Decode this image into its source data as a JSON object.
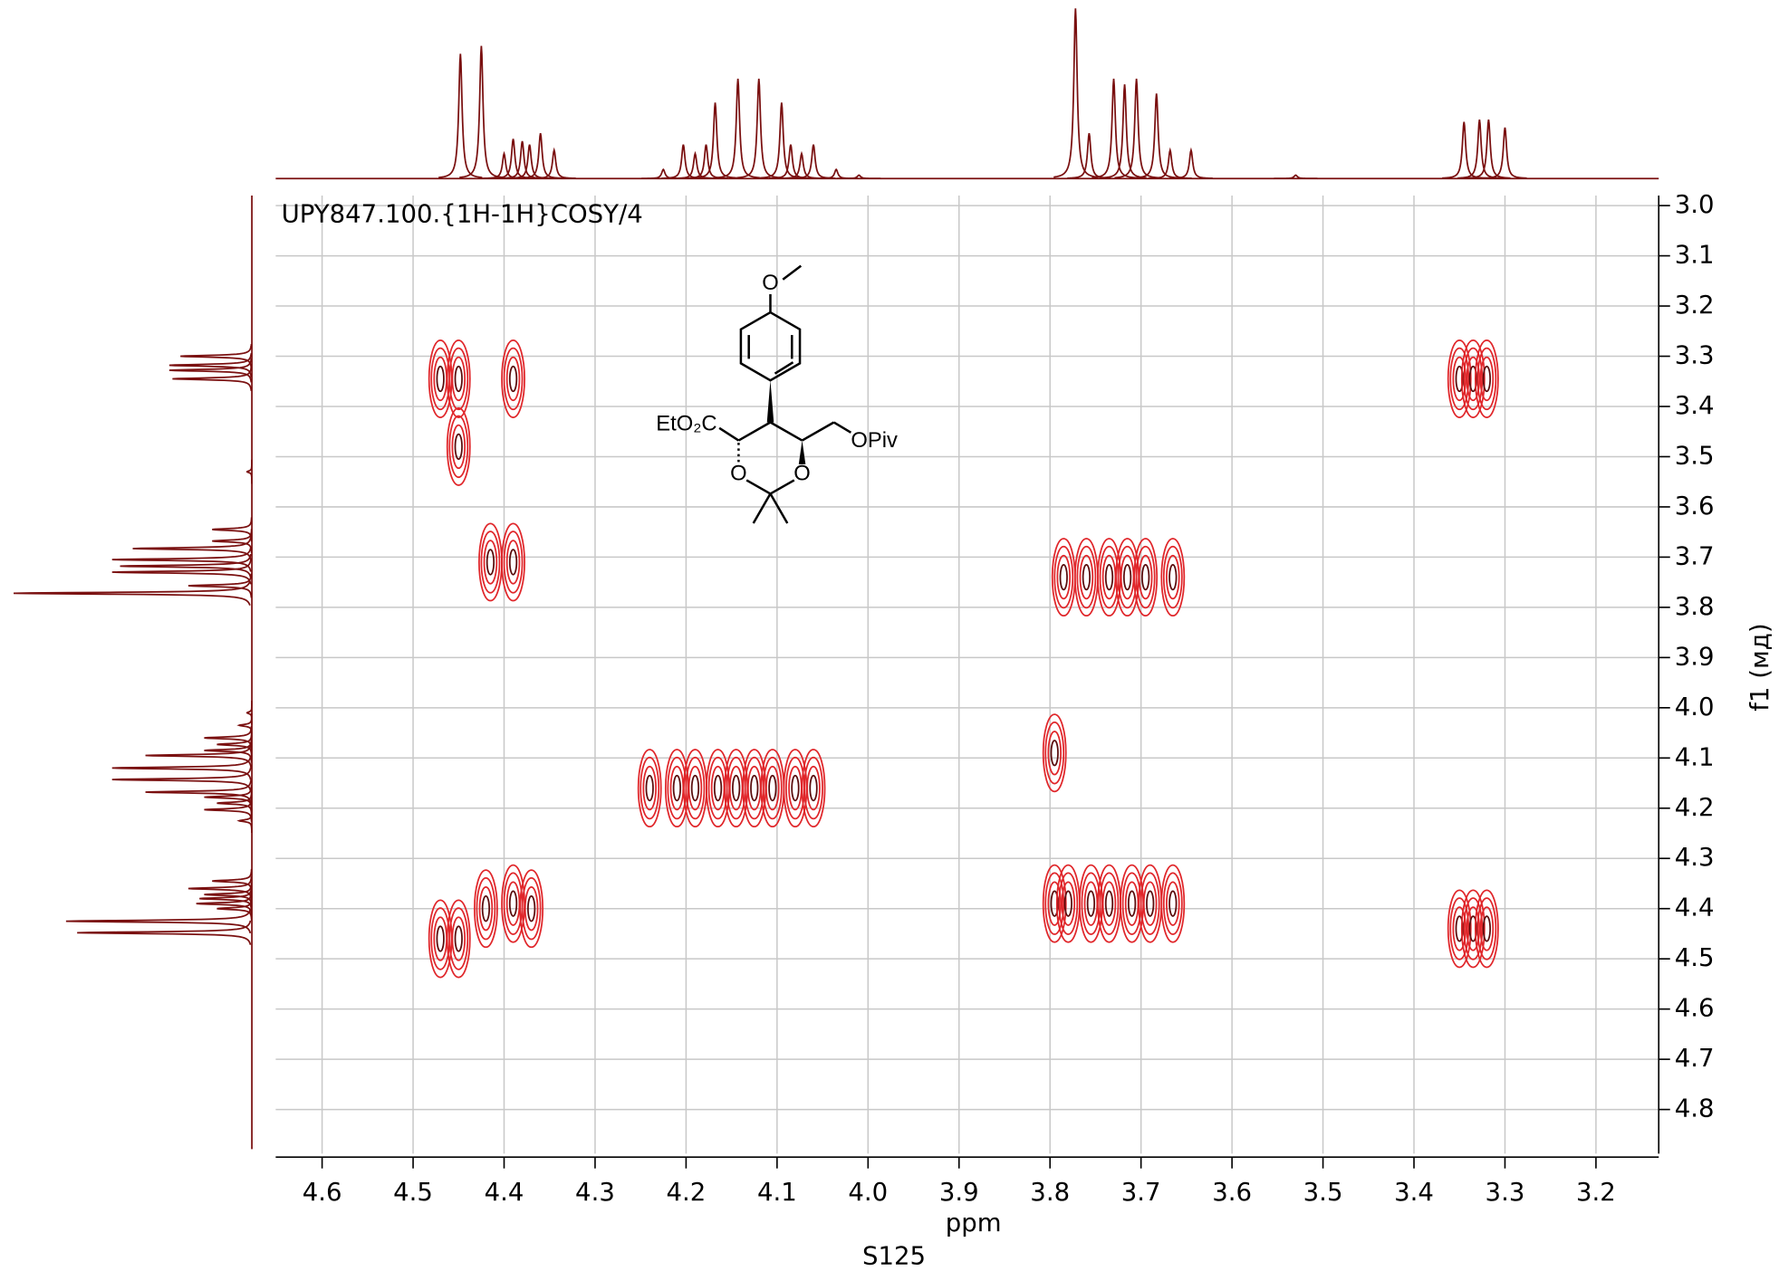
{
  "chart_data": {
    "type": "contour",
    "annotation": "UPY847.100.{1H-1H}COSY/4",
    "x_label": "ppm",
    "y_label": "f1 (мд)",
    "page_label": "S125",
    "structure_labels": [
      "O",
      "EtO₂C",
      "OPiv",
      "O",
      "O"
    ],
    "xlim": [
      4.651,
      3.131
    ],
    "ylim": [
      2.98,
      4.888
    ],
    "xticks": [
      {
        "value": 4.6,
        "label": "4.6"
      },
      {
        "value": 4.5,
        "label": "4.5"
      },
      {
        "value": 4.4,
        "label": "4.4"
      },
      {
        "value": 4.3,
        "label": "4.3"
      },
      {
        "value": 4.2,
        "label": "4.2"
      },
      {
        "value": 4.1,
        "label": "4.1"
      },
      {
        "value": 4.0,
        "label": "4.0"
      },
      {
        "value": 3.9,
        "label": "3.9"
      },
      {
        "value": 3.8,
        "label": "3.8"
      },
      {
        "value": 3.7,
        "label": "3.7"
      },
      {
        "value": 3.6,
        "label": "3.6"
      },
      {
        "value": 3.5,
        "label": "3.5"
      },
      {
        "value": 3.4,
        "label": "3.4"
      },
      {
        "value": 3.3,
        "label": "3.3"
      },
      {
        "value": 3.2,
        "label": "3.2"
      }
    ],
    "yticks": [
      {
        "value": 3.0,
        "label": "3.0"
      },
      {
        "value": 3.1,
        "label": "3.1"
      },
      {
        "value": 3.2,
        "label": "3.2"
      },
      {
        "value": 3.3,
        "label": "3.3"
      },
      {
        "value": 3.4,
        "label": "3.4"
      },
      {
        "value": 3.5,
        "label": "3.5"
      },
      {
        "value": 3.6,
        "label": "3.6"
      },
      {
        "value": 3.7,
        "label": "3.7"
      },
      {
        "value": 3.8,
        "label": "3.8"
      },
      {
        "value": 3.9,
        "label": "3.9"
      },
      {
        "value": 4.0,
        "label": "4.0"
      },
      {
        "value": 4.1,
        "label": "4.1"
      },
      {
        "value": 4.2,
        "label": "4.2"
      },
      {
        "value": 4.3,
        "label": "4.3"
      },
      {
        "value": 4.4,
        "label": "4.4"
      },
      {
        "value": 4.5,
        "label": "4.5"
      },
      {
        "value": 4.6,
        "label": "4.6"
      },
      {
        "value": 4.7,
        "label": "4.7"
      },
      {
        "value": 4.8,
        "label": "4.8"
      }
    ],
    "grid": true,
    "contour_color": "#e0262a",
    "core_color": "#5a0c0c",
    "projection_color": "#7a1010",
    "peaks": {
      "x": [
        4.47,
        4.45,
        4.39,
        3.35,
        3.335,
        3.32,
        4.415,
        4.39,
        3.785,
        3.76,
        3.735,
        3.715,
        3.695,
        3.665,
        4.24,
        4.21,
        4.19,
        4.165,
        4.145,
        4.125,
        4.105,
        4.08,
        4.06,
        3.795,
        4.47,
        4.45,
        4.42,
        4.39,
        4.37,
        3.795,
        3.78,
        3.755,
        3.735,
        3.71,
        3.69,
        3.665,
        3.35,
        3.335,
        3.32,
        4.45
      ],
      "y": [
        3.345,
        3.345,
        3.345,
        3.345,
        3.345,
        3.345,
        3.71,
        3.71,
        3.74,
        3.74,
        3.74,
        3.74,
        3.74,
        3.74,
        4.16,
        4.16,
        4.16,
        4.16,
        4.16,
        4.16,
        4.16,
        4.16,
        4.16,
        4.09,
        4.46,
        4.46,
        4.4,
        4.39,
        4.4,
        4.39,
        4.39,
        4.39,
        4.39,
        4.39,
        4.39,
        4.39,
        4.44,
        4.44,
        4.44,
        3.48
      ]
    },
    "projection": {
      "x": [
        4.448,
        4.425,
        4.4,
        4.39,
        4.38,
        4.372,
        4.36,
        4.345,
        4.225,
        4.203,
        4.19,
        4.178,
        4.168,
        4.143,
        4.12,
        4.095,
        4.085,
        4.073,
        4.06,
        4.035,
        4.01,
        3.772,
        3.757,
        3.73,
        3.718,
        3.705,
        3.683,
        3.668,
        3.645,
        3.53,
        3.345,
        3.328,
        3.318,
        3.3
      ],
      "intensity": [
        110,
        117,
        22,
        35,
        33,
        30,
        40,
        25,
        8,
        30,
        22,
        30,
        67,
        88,
        88,
        67,
        30,
        22,
        30,
        8,
        3,
        150,
        40,
        88,
        83,
        88,
        75,
        25,
        25,
        3,
        50,
        52,
        52,
        45
      ]
    }
  }
}
